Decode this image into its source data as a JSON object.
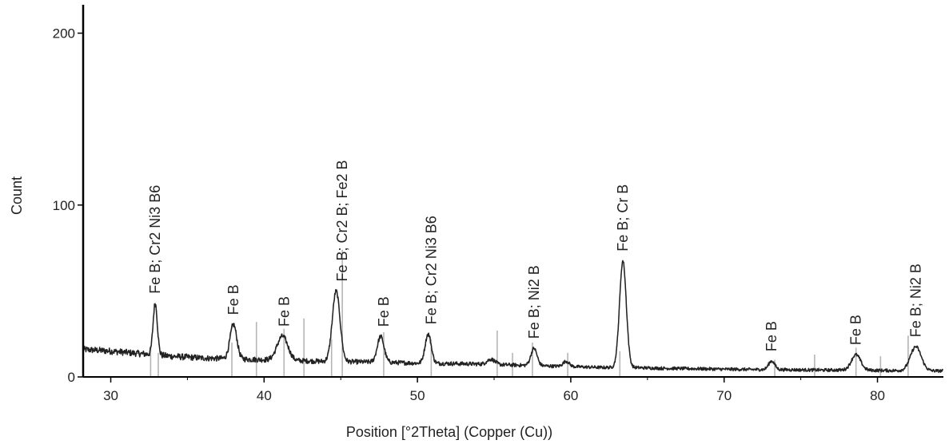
{
  "chart_data": {
    "type": "line",
    "title": "",
    "xlabel": "Position [°2Theta] (Copper (Cu))",
    "ylabel": "Count",
    "xlim": [
      28.2,
      84.3
    ],
    "ylim": [
      0,
      210
    ],
    "x_ticks": [
      30,
      40,
      50,
      60,
      70,
      80
    ],
    "x_tick_labels": [
      "30",
      "40",
      "50",
      "60",
      "70",
      "80"
    ],
    "y_ticks": [
      0,
      100,
      200
    ],
    "y_tick_labels": [
      "0",
      "100",
      "200"
    ],
    "grid": false,
    "legend": "none",
    "background": {
      "x": [
        28.2,
        30,
        32,
        34,
        36,
        38,
        40,
        42,
        44,
        46,
        48,
        50,
        52,
        54,
        56,
        58,
        60,
        62,
        64,
        66,
        68,
        70,
        72,
        74,
        76,
        78,
        80,
        82,
        84.3
      ],
      "y": [
        16,
        15,
        13.5,
        12,
        11,
        10.5,
        10,
        9.5,
        9,
        8.8,
        8.5,
        8,
        7.8,
        7.5,
        7,
        6.5,
        6,
        5.5,
        5.5,
        5,
        4.8,
        4.5,
        4.3,
        4.2,
        4,
        4,
        3.8,
        3.6,
        3.5
      ]
    },
    "peaks": [
      {
        "pos": 32.9,
        "height": 30,
        "width": 0.14
      },
      {
        "pos": 38.0,
        "height": 20,
        "width": 0.22
      },
      {
        "pos": 41.2,
        "height": 14,
        "width": 0.35
      },
      {
        "pos": 44.7,
        "height": 41,
        "width": 0.25
      },
      {
        "pos": 47.6,
        "height": 15,
        "width": 0.22
      },
      {
        "pos": 50.7,
        "height": 17,
        "width": 0.2
      },
      {
        "pos": 54.8,
        "height": 3,
        "width": 0.25
      },
      {
        "pos": 57.6,
        "height": 10,
        "width": 0.2
      },
      {
        "pos": 59.7,
        "height": 3,
        "width": 0.2
      },
      {
        "pos": 63.4,
        "height": 62,
        "width": 0.22
      },
      {
        "pos": 73.1,
        "height": 5,
        "width": 0.2
      },
      {
        "pos": 78.6,
        "height": 9,
        "width": 0.3
      },
      {
        "pos": 82.5,
        "height": 14,
        "width": 0.35
      }
    ],
    "reference_lines": [
      {
        "x": 32.6,
        "h": 18
      },
      {
        "x": 33.1,
        "h": 14
      },
      {
        "x": 37.9,
        "h": 20
      },
      {
        "x": 39.5,
        "h": 32
      },
      {
        "x": 41.3,
        "h": 28
      },
      {
        "x": 42.6,
        "h": 34
      },
      {
        "x": 44.4,
        "h": 22
      },
      {
        "x": 45.1,
        "h": 74
      },
      {
        "x": 47.8,
        "h": 26
      },
      {
        "x": 50.9,
        "h": 22
      },
      {
        "x": 55.2,
        "h": 27
      },
      {
        "x": 56.2,
        "h": 14
      },
      {
        "x": 57.5,
        "h": 20
      },
      {
        "x": 59.8,
        "h": 14
      },
      {
        "x": 63.2,
        "h": 15
      },
      {
        "x": 73.3,
        "h": 10
      },
      {
        "x": 75.9,
        "h": 13
      },
      {
        "x": 78.6,
        "h": 17
      },
      {
        "x": 80.2,
        "h": 12
      },
      {
        "x": 82.0,
        "h": 24
      }
    ],
    "annotations": [
      {
        "text": "Fe B; Cr2 Ni3 B6",
        "x": 32.9
      },
      {
        "text": "Fe B",
        "x": 38.0
      },
      {
        "text": "Fe B",
        "x": 41.3
      },
      {
        "text": "Fe B; Cr2 B; Fe2 B",
        "x": 45.1
      },
      {
        "text": "Fe B",
        "x": 47.8
      },
      {
        "text": "Fe B; Cr2 Ni3 B6",
        "x": 50.9
      },
      {
        "text": "Fe B; Ni2 B",
        "x": 57.6
      },
      {
        "text": "Fe B; Cr B",
        "x": 63.4
      },
      {
        "text": "Fe B",
        "x": 73.1
      },
      {
        "text": "Fe B",
        "x": 78.6
      },
      {
        "text": "Fe B; Ni2 B",
        "x": 82.5
      }
    ]
  }
}
